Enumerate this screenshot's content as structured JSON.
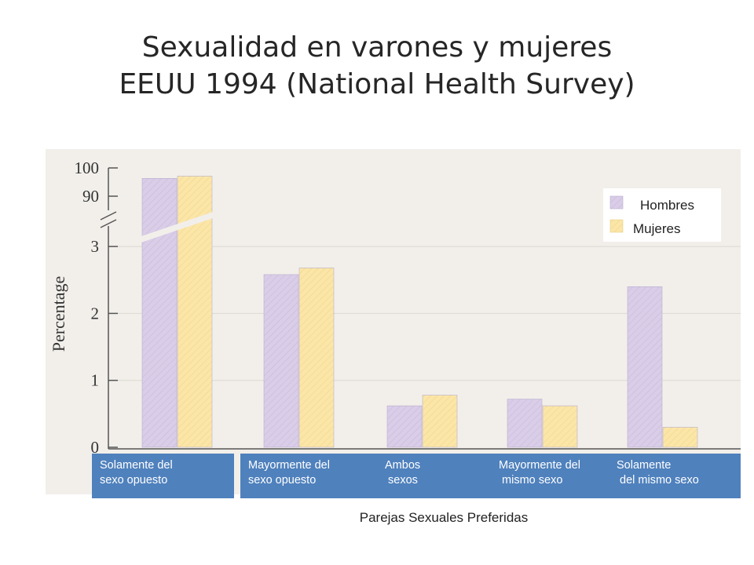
{
  "title_lines": [
    "Sexualidad en varones y mujeres",
    "EEUU 1994 (National Health Survey)"
  ],
  "chart_data": {
    "type": "bar",
    "ylabel": "Percentage",
    "xlabel": "Parejas Sexuales Preferidas",
    "ylim_upper": [
      90,
      100
    ],
    "ylim_lower": [
      0,
      3
    ],
    "axis_break": true,
    "yticks_upper": [
      "100",
      "90"
    ],
    "yticks_lower": [
      "3",
      "2",
      "1",
      "0"
    ],
    "categories": [
      "Solamente del\nsexo opuesto",
      "Mayormente del\nsexo opuesto",
      "Ambos\n sexos",
      "Mayormente del\n mismo sexo",
      "Solamente\n del mismo sexo"
    ],
    "series": [
      {
        "name": "Hombres",
        "color": "#d9cde8",
        "values": [
          96.3,
          2.58,
          0.62,
          0.72,
          2.4
        ]
      },
      {
        "name": "Mujeres",
        "color": "#fbe6a8",
        "values": [
          97.1,
          2.68,
          0.78,
          0.62,
          0.3
        ]
      }
    ],
    "legend_position": "top-right"
  }
}
